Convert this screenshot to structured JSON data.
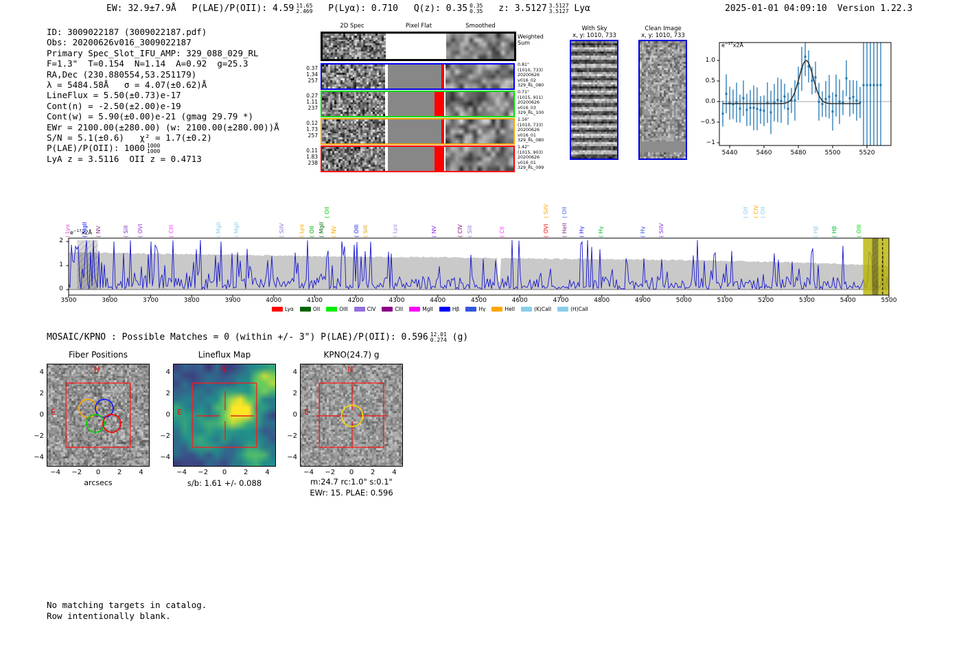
{
  "header": {
    "ew_label": "EW:",
    "ew_value": "32.9±7.9Å",
    "plae_label": "P(LAE)/P(OII):",
    "plae_value": "4.59",
    "plae_hi": "11.65",
    "plae_lo": "2.469",
    "plya_label": "P(Lyα):",
    "plya_value": "0.710",
    "qz_label": "Q(z):",
    "qz_value": "0.35",
    "qz_hi": "0.35",
    "qz_lo": "0.35",
    "z_label": "z:",
    "z_value": "3.5127",
    "z_hi": "3.5127",
    "z_lo": "3.5127",
    "z_type": "Lyα",
    "datetime": "2025-01-01 04:09:10",
    "version": "Version 1.22.3"
  },
  "info_lines": [
    {
      "text": "ID: 3009022187 (3009022187.pdf)"
    },
    {
      "text": "Obs: 20200626v016_3009022187"
    },
    {
      "text": "Primary Spec_Slot_IFU_AMP: 329_088_029_RL"
    },
    {
      "text": "F=1.3\"  T=0.154  N=1.14  A=0.92  g=25.3"
    },
    {
      "text": "RA,Dec (230.880554,53.251179)"
    },
    {
      "text": "λ = 5484.58Å   σ = 4.07(±0.62)Å"
    },
    {
      "text": "LineFlux = 5.50(±0.73)e-17"
    },
    {
      "text": "Cont(n) = -2.50(±2.00)e-19"
    },
    {
      "text": "Cont(w) = 5.90(±0.00)e-21 (gmag 29.79 *)"
    },
    {
      "text": "EWr = 2100.00(±280.00) (w: 2100.00(±280.00))Å"
    },
    {
      "text": "S/N = 5.1(±0.6)   χ² = 1.7(±0.2)"
    },
    {
      "text": "P(LAE)/P(OII): 1000",
      "sup": "1000",
      "sub": "1000"
    },
    {
      "text": "LyA z = 3.5116  OII z = 0.4713"
    }
  ],
  "twod_panel": {
    "col_headers": [
      "2D Spec",
      "Pixel Flat",
      "Smoothed"
    ],
    "weighted_label": [
      "Weighted",
      "Sum"
    ],
    "rows": [
      {
        "border_color": "#0000ff",
        "left_labels": [
          "0.37",
          "1.34",
          "257"
        ],
        "right_labels": [
          "0.81\"",
          "(1010, 733)",
          "20200626",
          "v016_02",
          "329_RL_080"
        ],
        "red_stripe_wide": false
      },
      {
        "border_color": "#00dd00",
        "left_labels": [
          "0.27",
          "1.11",
          "237"
        ],
        "right_labels": [
          "0.71\"",
          "(1015, 911)",
          "20200626",
          "v016_03",
          "329_RL_100"
        ],
        "red_stripe_wide": true
      },
      {
        "border_color": "#ffa500",
        "left_labels": [
          "0.12",
          "1.73",
          "257"
        ],
        "right_labels": [
          "1.16\"",
          "(1010, 733)",
          "20200626",
          "v016_01",
          "329_RL_080"
        ],
        "red_stripe_wide": false
      },
      {
        "border_color": "#ff0000",
        "left_labels": [
          "0.11",
          "1.83",
          "238"
        ],
        "right_labels": [
          "1.42\"",
          "(1015, 903)",
          "20200626",
          "v016_01",
          "329_RL_099"
        ],
        "red_stripe_wide": true
      }
    ]
  },
  "cutout_sky": {
    "title": "With Sky",
    "subtitle": "x, y: 1010, 733",
    "border_color": "#0000dd"
  },
  "cutout_clean": {
    "title": "Clean Image",
    "subtitle": "x, y: 1010, 733",
    "border_color": "#0000dd"
  },
  "chart_data": {
    "zoom_spectrum": {
      "type": "line",
      "description": "1D spectrum zoom around detected emission line with error bars and gaussian fit",
      "unit_label": {
        "prefix": "e",
        "sup": "−17",
        "suffix": "x2Å"
      },
      "xlim": [
        5434,
        5534
      ],
      "ylim": [
        -1.07,
        1.43
      ],
      "x_ticks": [
        5440,
        5460,
        5480,
        5500,
        5520
      ],
      "y_ticks": [
        -1.0,
        -0.5,
        0.0,
        0.5,
        1.0
      ],
      "point_color": "#1f77b4",
      "fit_color": "#333333",
      "gaussian_fit": {
        "center": 5484.58,
        "sigma": 4.07,
        "amplitude": 1.05,
        "baseline": -0.05
      },
      "typical_error": 0.42,
      "saturated_error_region_start": 5518
    },
    "full_spectrum": {
      "type": "line",
      "description": "Full HETDEX 1D spectrum 3500-5500 Å with noise envelope, line markers and detection highlight",
      "unit_label": {
        "prefix": "e",
        "sup": "−17",
        "suffix": "x2Å"
      },
      "xlim": [
        3500,
        5500
      ],
      "ylim": [
        -0.23,
        2.14
      ],
      "x_ticks": [
        3500,
        3600,
        3700,
        3800,
        3900,
        4000,
        4100,
        4200,
        4300,
        4400,
        4500,
        4600,
        4700,
        4800,
        4900,
        5000,
        5100,
        5200,
        5300,
        5400,
        5500
      ],
      "y_ticks": [
        0,
        1,
        2
      ],
      "line_color": "#1616cc",
      "envelope_color": "#c9c9c9",
      "envelope_points": [
        [
          3500,
          1.55
        ],
        [
          3700,
          1.5
        ],
        [
          3900,
          1.45
        ],
        [
          4000,
          1.42
        ],
        [
          4100,
          1.38
        ],
        [
          4300,
          1.36
        ],
        [
          4500,
          1.33
        ],
        [
          4700,
          1.28
        ],
        [
          4900,
          1.25
        ],
        [
          5100,
          1.2
        ],
        [
          5300,
          1.12
        ],
        [
          5440,
          1.03
        ],
        [
          5500,
          0.97
        ]
      ],
      "envelope_notch_x": 4549,
      "left_hatch_band": [
        3521,
        3571
      ],
      "highlight_band": {
        "x0": 5437,
        "x1": 5500,
        "color": "#b9b400"
      },
      "highlight_hatch_band": [
        5459,
        5474
      ],
      "detection_line_x": 5484.58,
      "forced_peaks": [
        [
          3516,
          1.8
        ],
        [
          3545,
          2.05
        ],
        [
          3575,
          1.6
        ],
        [
          3610,
          2.0
        ],
        [
          3652,
          2.05
        ],
        [
          3701,
          2.0
        ],
        [
          3756,
          2.05
        ],
        [
          3820,
          2.07
        ],
        [
          3871,
          2.0
        ],
        [
          3936,
          1.7
        ],
        [
          4083,
          2.05
        ],
        [
          4130,
          1.35
        ],
        [
          4222,
          1.6
        ],
        [
          4285,
          1.5
        ],
        [
          4480,
          1.45
        ],
        [
          4766,
          2.07
        ],
        [
          4860,
          1.3
        ],
        [
          5050,
          1.2
        ],
        [
          5230,
          1.25
        ],
        [
          5484,
          1.62
        ]
      ],
      "line_markers": [
        {
          "name": "Lyα",
          "wavelength": 3500,
          "color": "#d355d3",
          "tier": 0
        },
        {
          "name": "MgII",
          "wavelength": 3542,
          "color": "#0000ff",
          "tier": 0
        },
        {
          "name": "NV",
          "wavelength": 3576,
          "color": "#803080",
          "tier": 0
        },
        {
          "name": "SiII",
          "wavelength": 3643,
          "color": "#7733bb",
          "tier": 0
        },
        {
          "name": "OVI",
          "wavelength": 3678,
          "color": "#9932cc",
          "tier": 0
        },
        {
          "name": "CIII",
          "wavelength": 3752,
          "color": "#ff30ff",
          "tier": 0
        },
        {
          "name": "MgII",
          "wavelength": 3868,
          "color": "#87ceeb",
          "tier": 0
        },
        {
          "name": "MgII",
          "wavelength": 3911,
          "color": "#87ceeb",
          "tier": 0
        },
        {
          "name": "SiIV",
          "wavelength": 4023,
          "color": "#9370db",
          "tier": 0
        },
        {
          "name": "Lyα",
          "wavelength": 4070,
          "color": "#ffa500",
          "tier": 0
        },
        {
          "name": "OII",
          "wavelength": 4095,
          "color": "#00aa00",
          "tier": 0
        },
        {
          "name": "MgII",
          "wavelength": 4120,
          "color": "#006400",
          "tier": 0
        },
        {
          "name": "OII",
          "wavelength": 4132,
          "color": "#00cc00",
          "tier": 1
        },
        {
          "name": "NV",
          "wavelength": 4149,
          "color": "#ffa500",
          "tier": 0
        },
        {
          "name": "OIII",
          "wavelength": 4204,
          "color": "#2222ee",
          "tier": 0
        },
        {
          "name": "SiII",
          "wavelength": 4226,
          "color": "#d9a400",
          "tier": 0
        },
        {
          "name": "Lyα",
          "wavelength": 4299,
          "color": "#a98be0",
          "tier": 0
        },
        {
          "name": "NV",
          "wavelength": 4393,
          "color": "#8a2be2",
          "tier": 0
        },
        {
          "name": "CIV",
          "wavelength": 4458,
          "color": "#800080",
          "tier": 0
        },
        {
          "name": "SiII",
          "wavelength": 4480,
          "color": "#9370db",
          "tier": 0
        },
        {
          "name": "CII",
          "wavelength": 4560,
          "color": "#ff30ff",
          "tier": 0
        },
        {
          "name": "OVI",
          "wavelength": 4667,
          "color": "#ee1111",
          "tier": 0
        },
        {
          "name": "SiIV",
          "wavelength": 4667,
          "color": "#ffa500",
          "tier": 1
        },
        {
          "name": "HeII",
          "wavelength": 4711,
          "color": "#803080",
          "tier": 0
        },
        {
          "name": "OII",
          "wavelength": 4711,
          "color": "#4169e1",
          "tier": 1
        },
        {
          "name": "Hγ",
          "wavelength": 4754,
          "color": "#1a1aff",
          "tier": 0
        },
        {
          "name": "Hγ",
          "wavelength": 4801,
          "color": "#00bb33",
          "tier": 0
        },
        {
          "name": "Hγ",
          "wavelength": 4902,
          "color": "#3355dd",
          "tier": 0
        },
        {
          "name": "SiIV",
          "wavelength": 4948,
          "color": "#8a2be2",
          "tier": 0
        },
        {
          "name": "OII",
          "wavelength": 5154,
          "color": "#87ceeb",
          "tier": 1
        },
        {
          "name": "CIV",
          "wavelength": 5179,
          "color": "#ffa500",
          "tier": 1
        },
        {
          "name": "OII",
          "wavelength": 5196,
          "color": "#87ceeb",
          "tier": 1
        },
        {
          "name": "Hβ",
          "wavelength": 5325,
          "color": "#87ceeb",
          "tier": 0
        },
        {
          "name": "Hβ",
          "wavelength": 5370,
          "color": "#00bb33",
          "tier": 0
        },
        {
          "name": "OIII",
          "wavelength": 5430,
          "color": "#00dd00",
          "tier": 0
        }
      ],
      "legend": [
        {
          "label": "Lyα",
          "color": "#ff0000"
        },
        {
          "label": "OII",
          "color": "#006400"
        },
        {
          "label": "OIII",
          "color": "#00ee00"
        },
        {
          "label": "CIV",
          "color": "#9370db"
        },
        {
          "label": "CIII",
          "color": "#8b008b"
        },
        {
          "label": "MgII",
          "color": "#ff00ff"
        },
        {
          "label": "Hβ",
          "color": "#0000ff"
        },
        {
          "label": "Hγ",
          "color": "#3355dd"
        },
        {
          "label": "HeII",
          "color": "#ffa500"
        },
        {
          "label": "(K)CaII",
          "color": "#87ceeb"
        },
        {
          "label": "(H)CaII",
          "color": "#87ceeb"
        }
      ]
    }
  },
  "mosaic_line": {
    "prefix": "MOSAIC/KPNO : Possible Matches = 0 (within +/- 3\")  P(LAE)/P(OII): 0.596",
    "sup": "12.01",
    "sub": "0.274",
    "suffix": "(g)"
  },
  "panels": {
    "fiber": {
      "title": "Fiber Positions",
      "xlabel": "arcsecs",
      "x_ticks": [
        -4,
        -2,
        0,
        2,
        4
      ],
      "y_ticks": [
        -4,
        -2,
        0,
        2,
        4
      ],
      "compass_n": "N",
      "compass_e": "E",
      "fiber_circle_colors": [
        "#ffa500",
        "#1a1aff",
        "#00cc00",
        "#ff0000"
      ],
      "box_color": "#ff1a1a"
    },
    "lineflux": {
      "title": "Lineflux Map",
      "caption": "s/b: 1.61 +/- 0.088",
      "x_ticks": [
        -4,
        -2,
        0,
        2,
        4
      ],
      "y_ticks": [
        -4,
        -2,
        0,
        2,
        4
      ],
      "compass_n": "N",
      "compass_e": "E",
      "box_color": "#ff1a1a"
    },
    "kpno": {
      "title": "KPNO(24.7) g",
      "caption1": "m:24.7 rc:1.0\"  s:0.1\"",
      "caption2": "EWr: 15. PLAE: 0.596",
      "x_ticks": [
        -4,
        -2,
        0,
        2,
        4
      ],
      "y_ticks": [
        -4,
        -2,
        0,
        2,
        4
      ],
      "compass_n": "N",
      "compass_e": "E",
      "aperture_color": "#ffd700",
      "box_color": "#ff1a1a"
    }
  },
  "footer_lines": [
    "No matching targets in catalog.",
    "Row intentionally blank."
  ]
}
